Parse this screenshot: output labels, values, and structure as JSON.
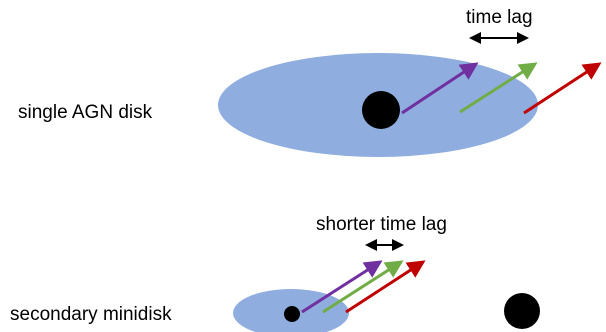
{
  "panels": {
    "single": {
      "label": "single AGN disk",
      "lag_label": "time lag"
    },
    "binary": {
      "label": "secondary minidisk",
      "lag_label": "shorter time lag"
    }
  },
  "colors": {
    "disk": "#8fadde",
    "black_hole": "#000000",
    "arrow_purple": "#7030a0",
    "arrow_green": "#70ad47",
    "arrow_red": "#c00000",
    "lag_arrow": "#000000"
  }
}
